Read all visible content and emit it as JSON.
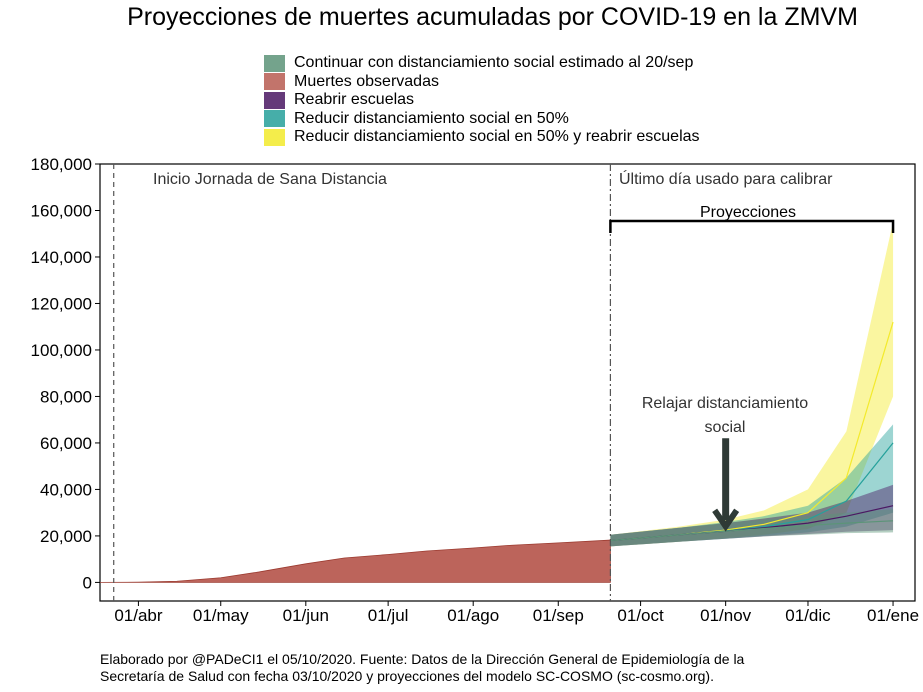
{
  "title": "Proyecciones de muertes acumuladas por COVID-19 en la ZMVM",
  "legend": [
    {
      "label": "Continuar con distanciamiento social estimado al 20/sep",
      "color": "#5c9478"
    },
    {
      "label": "Muertes observadas",
      "color": "#b85c52"
    },
    {
      "label": "Reabrir escuelas",
      "color": "#4b1863"
    },
    {
      "label": "Reducir distanciamiento social en 50%",
      "color": "#26a19b"
    },
    {
      "label": "Reducir distanciamiento social en 50% y reabrir escuelas",
      "color": "#f3ea2c"
    }
  ],
  "annotations": {
    "inicio": "Inicio Jornada de Sana Distancia",
    "ultimo": "Último día usado para calibrar",
    "proyecciones": "Proyecciones",
    "relajar_line1": "Relajar distanciamiento",
    "relajar_line2": "social"
  },
  "footer": {
    "line1": "Elaborado por @PADeCI1 el 05/10/2020. Fuente: Datos de la Dirección General de Epidemiología de la",
    "line2": "Secretaría de Salud con fecha 03/10/2020 y proyecciones del modelo SC-COSMO (sc-cosmo.org)."
  },
  "chart_data": {
    "type": "area",
    "title": "Proyecciones de muertes acumuladas por COVID-19 en la ZMVM",
    "xlabel": "",
    "ylabel": "",
    "ylim": [
      -8000,
      180000
    ],
    "xlim": [
      "2020-03-18",
      "2021-01-09"
    ],
    "y_ticks": [
      0,
      20000,
      40000,
      60000,
      80000,
      100000,
      120000,
      140000,
      160000,
      180000
    ],
    "y_tick_labels": [
      "0",
      "20,000",
      "40,000",
      "60,000",
      "80,000",
      "100,000",
      "120,000",
      "140,000",
      "160,000",
      "180,000"
    ],
    "x_ticks": [
      "2020-04-01",
      "2020-05-01",
      "2020-06-01",
      "2020-07-01",
      "2020-08-01",
      "2020-09-01",
      "2020-10-01",
      "2020-11-01",
      "2020-12-01",
      "2021-01-01"
    ],
    "x_tick_labels": [
      "01/abr",
      "01/may",
      "01/jun",
      "01/jul",
      "01/ago",
      "01/sep",
      "01/oct",
      "01/nov",
      "01/dic",
      "01/ene"
    ],
    "grid": false,
    "legend_position": "top",
    "vlines": [
      {
        "date": "2020-03-23",
        "label": "Inicio Jornada de Sana Distancia",
        "style": "dashed"
      },
      {
        "date": "2020-09-20",
        "label": "Último día usado para calibrar",
        "style": "dashdot"
      }
    ],
    "bracket": {
      "from": "2020-09-20",
      "to": "2021-01-01",
      "label": "Proyecciones"
    },
    "arrow": {
      "date": "2020-11-01",
      "label": "Relajar distanciamiento social",
      "y_from": 62000,
      "y_to": 25000
    },
    "observed": {
      "name": "Muertes observadas",
      "x": [
        "2020-03-18",
        "2020-04-01",
        "2020-04-15",
        "2020-05-01",
        "2020-05-15",
        "2020-06-01",
        "2020-06-15",
        "2020-07-01",
        "2020-07-15",
        "2020-08-01",
        "2020-08-15",
        "2020-09-01",
        "2020-09-20"
      ],
      "y": [
        0,
        100,
        500,
        2000,
        4500,
        8000,
        10500,
        12000,
        13500,
        14800,
        16000,
        17000,
        18200
      ]
    },
    "series": [
      {
        "name": "Continuar con distanciamiento social estimado al 20/sep",
        "x": [
          "2020-09-20",
          "2020-10-15",
          "2020-11-01",
          "2020-11-15",
          "2020-12-01",
          "2020-12-15",
          "2021-01-01"
        ],
        "y": [
          18000,
          20500,
          22000,
          23200,
          24500,
          25500,
          26500
        ],
        "lower": [
          15500,
          17500,
          18800,
          19800,
          20500,
          21200,
          21500
        ],
        "upper": [
          20500,
          23500,
          25500,
          27000,
          28500,
          30000,
          31500
        ]
      },
      {
        "name": "Reabrir escuelas",
        "x": [
          "2020-09-20",
          "2020-10-15",
          "2020-11-01",
          "2020-11-15",
          "2020-12-01",
          "2020-12-15",
          "2021-01-01"
        ],
        "y": [
          18000,
          20500,
          22000,
          23500,
          25500,
          28500,
          33000
        ],
        "lower": [
          15500,
          17500,
          18800,
          19800,
          20800,
          21800,
          22500
        ],
        "upper": [
          20500,
          23500,
          25500,
          27500,
          30000,
          35000,
          42000
        ]
      },
      {
        "name": "Reducir distanciamiento social en 50%",
        "x": [
          "2020-09-20",
          "2020-10-15",
          "2020-11-01",
          "2020-11-15",
          "2020-12-01",
          "2020-12-15",
          "2021-01-01"
        ],
        "y": [
          18000,
          20500,
          22200,
          24000,
          27000,
          35000,
          60000
        ],
        "lower": [
          15500,
          17500,
          18800,
          20000,
          21500,
          24000,
          30000
        ],
        "upper": [
          20500,
          23500,
          26000,
          28500,
          33000,
          45000,
          68000
        ]
      },
      {
        "name": "Reducir distanciamiento social en 50% y reabrir escuelas",
        "x": [
          "2020-09-20",
          "2020-10-15",
          "2020-11-01",
          "2020-11-15",
          "2020-12-01",
          "2020-12-15",
          "2021-01-01"
        ],
        "y": [
          18000,
          20500,
          22500,
          25000,
          30000,
          45000,
          112000
        ],
        "lower": [
          15500,
          17500,
          19000,
          20500,
          23000,
          30000,
          80000
        ],
        "upper": [
          20500,
          24000,
          27000,
          31000,
          40000,
          65000,
          155000
        ]
      }
    ]
  }
}
